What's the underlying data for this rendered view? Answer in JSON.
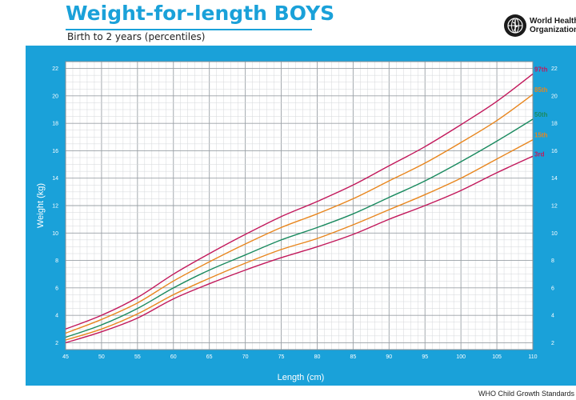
{
  "header": {
    "title": "Weight-for-length BOYS",
    "subtitle": "Birth to 2 years (percentiles)"
  },
  "logo": {
    "icon": "who-emblem-icon",
    "name_line1": "World Health",
    "name_line2": "Organization"
  },
  "footer": {
    "text": "WHO Child Growth Standards"
  },
  "colors": {
    "accent": "#1aa1d9",
    "p97": "#c2185b",
    "p85": "#e8861e",
    "p50": "#1a8a5f",
    "p15": "#e8861e",
    "p3": "#c2185b"
  },
  "chart_data": {
    "type": "line",
    "title": "Weight-for-length BOYS",
    "subtitle": "Birth to 2 years (percentiles)",
    "xlabel": "Length (cm)",
    "ylabel": "Weight (kg)",
    "xlim": [
      45,
      110
    ],
    "ylim": [
      1.5,
      22.5
    ],
    "xticks": [
      45,
      50,
      55,
      60,
      65,
      70,
      75,
      80,
      85,
      90,
      95,
      100,
      105,
      110
    ],
    "yticks": [
      2,
      4,
      6,
      8,
      10,
      12,
      14,
      16,
      18,
      20,
      22
    ],
    "grid": true,
    "legend": "line-end labels at right",
    "x": [
      45,
      50,
      55,
      60,
      65,
      70,
      75,
      80,
      85,
      90,
      95,
      100,
      105,
      110
    ],
    "series": [
      {
        "name": "97th",
        "color": "#c2185b",
        "values": [
          3.0,
          4.0,
          5.3,
          7.0,
          8.5,
          9.9,
          11.2,
          12.3,
          13.5,
          14.9,
          16.3,
          17.9,
          19.6,
          21.6
        ]
      },
      {
        "name": "85th",
        "color": "#e8861e",
        "values": [
          2.7,
          3.7,
          4.9,
          6.5,
          7.9,
          9.2,
          10.4,
          11.4,
          12.5,
          13.8,
          15.1,
          16.6,
          18.2,
          20.1
        ]
      },
      {
        "name": "50th",
        "color": "#1a8a5f",
        "values": [
          2.4,
          3.3,
          4.5,
          6.0,
          7.3,
          8.4,
          9.5,
          10.4,
          11.4,
          12.6,
          13.8,
          15.2,
          16.7,
          18.3
        ]
      },
      {
        "name": "15th",
        "color": "#e8861e",
        "values": [
          2.2,
          3.0,
          4.1,
          5.5,
          6.7,
          7.8,
          8.8,
          9.6,
          10.6,
          11.7,
          12.8,
          14.0,
          15.4,
          16.8
        ]
      },
      {
        "name": "3rd",
        "color": "#c2185b",
        "values": [
          2.0,
          2.8,
          3.8,
          5.2,
          6.3,
          7.3,
          8.2,
          9.0,
          9.9,
          11.0,
          12.0,
          13.1,
          14.4,
          15.6
        ]
      }
    ]
  }
}
